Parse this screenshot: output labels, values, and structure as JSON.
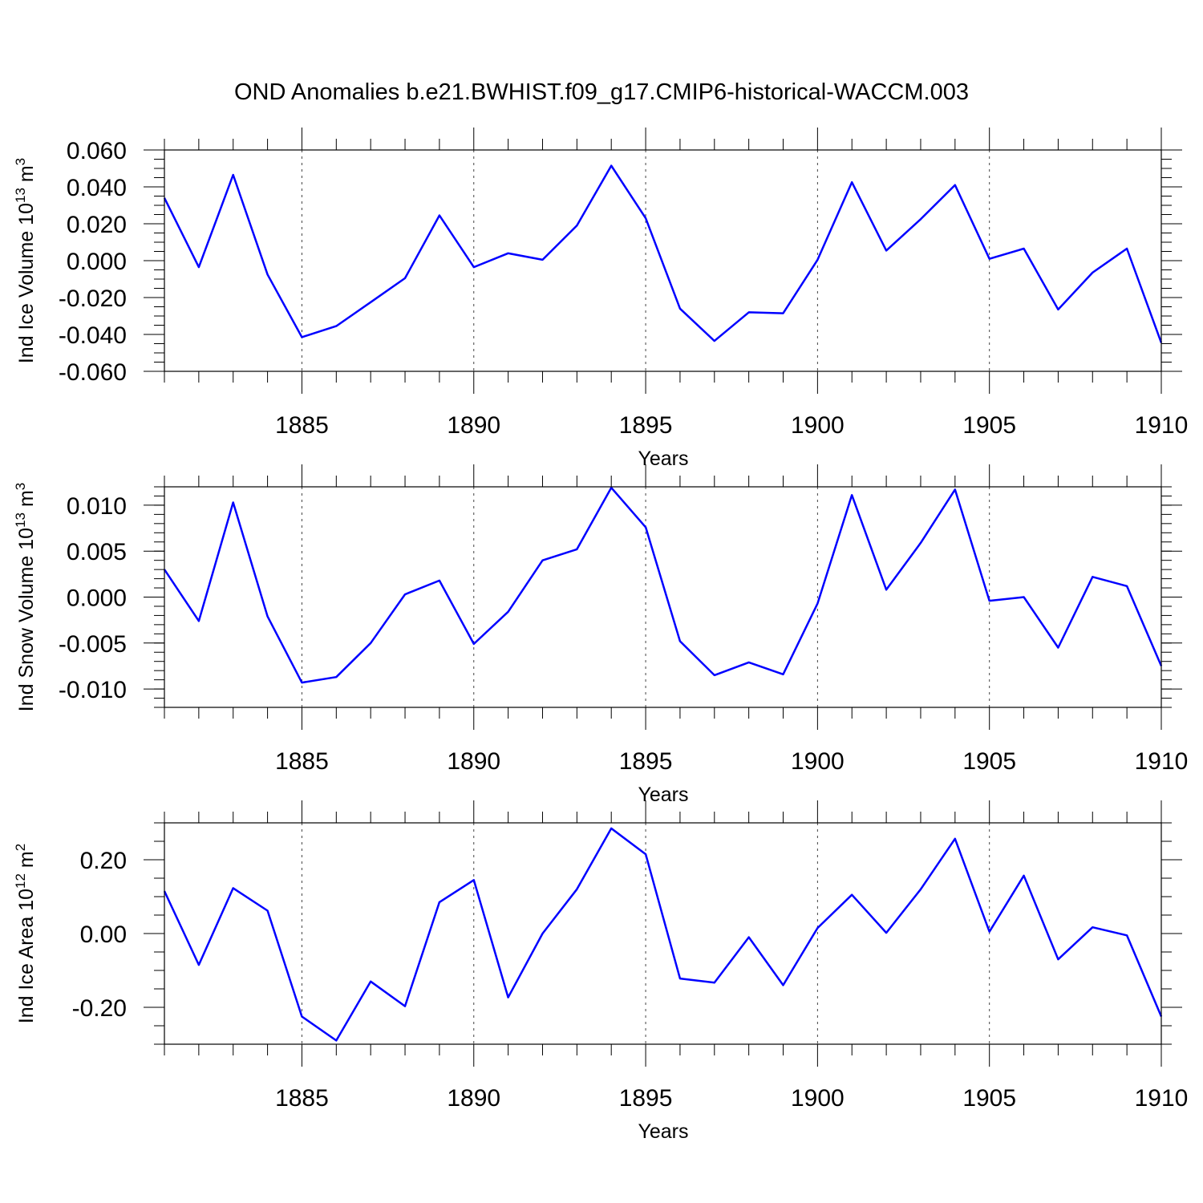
{
  "title": "OND Anomalies b.e21.BWHIST.f09_g17.CMIP6-historical-WACCM.003",
  "colors": {
    "line": "#0000ff",
    "axis": "#000000"
  },
  "chart_data": [
    {
      "type": "line",
      "ylabel": {
        "main": "Ind Ice Volume 10",
        "exp": "13",
        "unit": " m",
        "unit_exp": "3"
      },
      "xlabel": "Years",
      "xlim": [
        1881,
        1910
      ],
      "ylim": [
        -0.06,
        0.06
      ],
      "x_ticks": [
        1885,
        1890,
        1895,
        1900,
        1905,
        1910
      ],
      "x_tick_labels": [
        "1885",
        "1890",
        "1895",
        "1900",
        "1905",
        "1910"
      ],
      "y_ticks": [
        -0.06,
        -0.04,
        -0.02,
        0.0,
        0.02,
        0.04,
        0.06
      ],
      "y_tick_labels": [
        "-0.060",
        "-0.040",
        "-0.020",
        "0.000",
        "0.020",
        "0.040",
        "0.060"
      ],
      "y_minor_step": 0.005,
      "x": [
        1881,
        1882,
        1883,
        1884,
        1885,
        1886,
        1887,
        1888,
        1889,
        1890,
        1891,
        1892,
        1893,
        1894,
        1895,
        1896,
        1897,
        1898,
        1899,
        1900,
        1901,
        1902,
        1903,
        1904,
        1905,
        1906,
        1907,
        1908,
        1909,
        1910
      ],
      "values": [
        0.034,
        -0.0035,
        0.0465,
        -0.0075,
        -0.0415,
        -0.0355,
        -0.0225,
        -0.0095,
        0.0245,
        -0.0035,
        0.004,
        0.0005,
        0.019,
        0.0515,
        0.023,
        -0.026,
        -0.0435,
        -0.028,
        -0.0285,
        0.0005,
        0.0425,
        0.0055,
        0.0225,
        0.041,
        0.001,
        0.0065,
        -0.0265,
        -0.0065,
        0.0065,
        -0.0445
      ]
    },
    {
      "type": "line",
      "ylabel": {
        "main": "Ind Snow Volume 10",
        "exp": "13",
        "unit": " m",
        "unit_exp": "3"
      },
      "xlabel": "Years",
      "xlim": [
        1881,
        1910
      ],
      "ylim": [
        -0.012,
        0.012
      ],
      "x_ticks": [
        1885,
        1890,
        1895,
        1900,
        1905,
        1910
      ],
      "x_tick_labels": [
        "1885",
        "1890",
        "1895",
        "1900",
        "1905",
        "1910"
      ],
      "y_ticks": [
        -0.01,
        -0.005,
        0.0,
        0.005,
        0.01
      ],
      "y_tick_labels": [
        "-0.010",
        "-0.005",
        "0.000",
        "0.005",
        "0.010"
      ],
      "y_minor_step": 0.001,
      "x": [
        1881,
        1882,
        1883,
        1884,
        1885,
        1886,
        1887,
        1888,
        1889,
        1890,
        1891,
        1892,
        1893,
        1894,
        1895,
        1896,
        1897,
        1898,
        1899,
        1900,
        1901,
        1902,
        1903,
        1904,
        1905,
        1906,
        1907,
        1908,
        1909,
        1910
      ],
      "values": [
        0.003,
        -0.0026,
        0.0103,
        -0.0021,
        -0.0093,
        -0.0087,
        -0.005,
        0.0003,
        0.0018,
        -0.0051,
        -0.0016,
        0.004,
        0.0052,
        0.0119,
        0.0076,
        -0.0048,
        -0.0085,
        -0.0071,
        -0.0084,
        -0.0007,
        0.0111,
        0.0008,
        0.0059,
        0.0117,
        -0.0004,
        0.0,
        -0.0055,
        0.0022,
        0.0012,
        -0.0075
      ]
    },
    {
      "type": "line",
      "ylabel": {
        "main": "Ind Ice Area 10",
        "exp": "12",
        "unit": " m",
        "unit_exp": "2"
      },
      "xlabel": "Years",
      "xlim": [
        1881,
        1910
      ],
      "ylim": [
        -0.3,
        0.3
      ],
      "x_ticks": [
        1885,
        1890,
        1895,
        1900,
        1905,
        1910
      ],
      "x_tick_labels": [
        "1885",
        "1890",
        "1895",
        "1900",
        "1905",
        "1910"
      ],
      "y_ticks": [
        -0.2,
        0.0,
        0.2
      ],
      "y_tick_labels": [
        "-0.20",
        "0.00",
        "0.20"
      ],
      "y_minor_step": 0.05,
      "x": [
        1881,
        1882,
        1883,
        1884,
        1885,
        1886,
        1887,
        1888,
        1889,
        1890,
        1891,
        1892,
        1893,
        1894,
        1895,
        1896,
        1897,
        1898,
        1899,
        1900,
        1901,
        1902,
        1903,
        1904,
        1905,
        1906,
        1907,
        1908,
        1909,
        1910
      ],
      "values": [
        0.115,
        -0.085,
        0.123,
        0.062,
        -0.225,
        -0.29,
        -0.13,
        -0.197,
        0.085,
        0.145,
        -0.173,
        0.0,
        0.12,
        0.285,
        0.215,
        -0.122,
        -0.133,
        -0.01,
        -0.14,
        0.015,
        0.105,
        0.002,
        0.12,
        0.257,
        0.005,
        0.157,
        -0.07,
        0.017,
        -0.005,
        -0.225
      ]
    }
  ]
}
